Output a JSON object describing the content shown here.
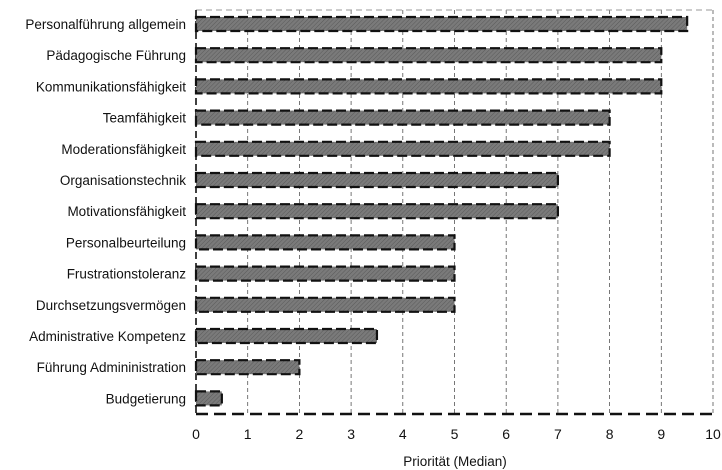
{
  "chart_data": {
    "type": "bar",
    "orientation": "horizontal",
    "categories": [
      "Personalführung allgemein",
      "Pädagogische Führung",
      "Kommunikationsfähigkeit",
      "Teamfähigkeit",
      "Moderationsfähigkeit",
      "Organisationstechnik",
      "Motivationsfähigkeit",
      "Personalbeurteilung",
      "Frustrationstoleranz",
      "Durchsetzungsvermögen",
      "Administrative Kompetenz",
      "Führung Admininistration",
      "Budgetierung"
    ],
    "values": [
      9.5,
      9,
      9,
      8,
      8,
      7,
      7,
      5,
      5,
      5,
      3.5,
      2,
      0.5
    ],
    "title": "",
    "xlabel": "Priorität (Median)",
    "ylabel": "",
    "xlim": [
      0,
      10
    ],
    "xticks": [
      "0",
      "1",
      "2",
      "3",
      "4",
      "5",
      "6",
      "7",
      "8",
      "9",
      "10"
    ],
    "grid": "vertical dashed",
    "legend": "none",
    "colors": {
      "bar_fill": "#7a7a7a",
      "bar_edge": "#111111",
      "grid": "#555555",
      "axis": "#111111"
    }
  }
}
